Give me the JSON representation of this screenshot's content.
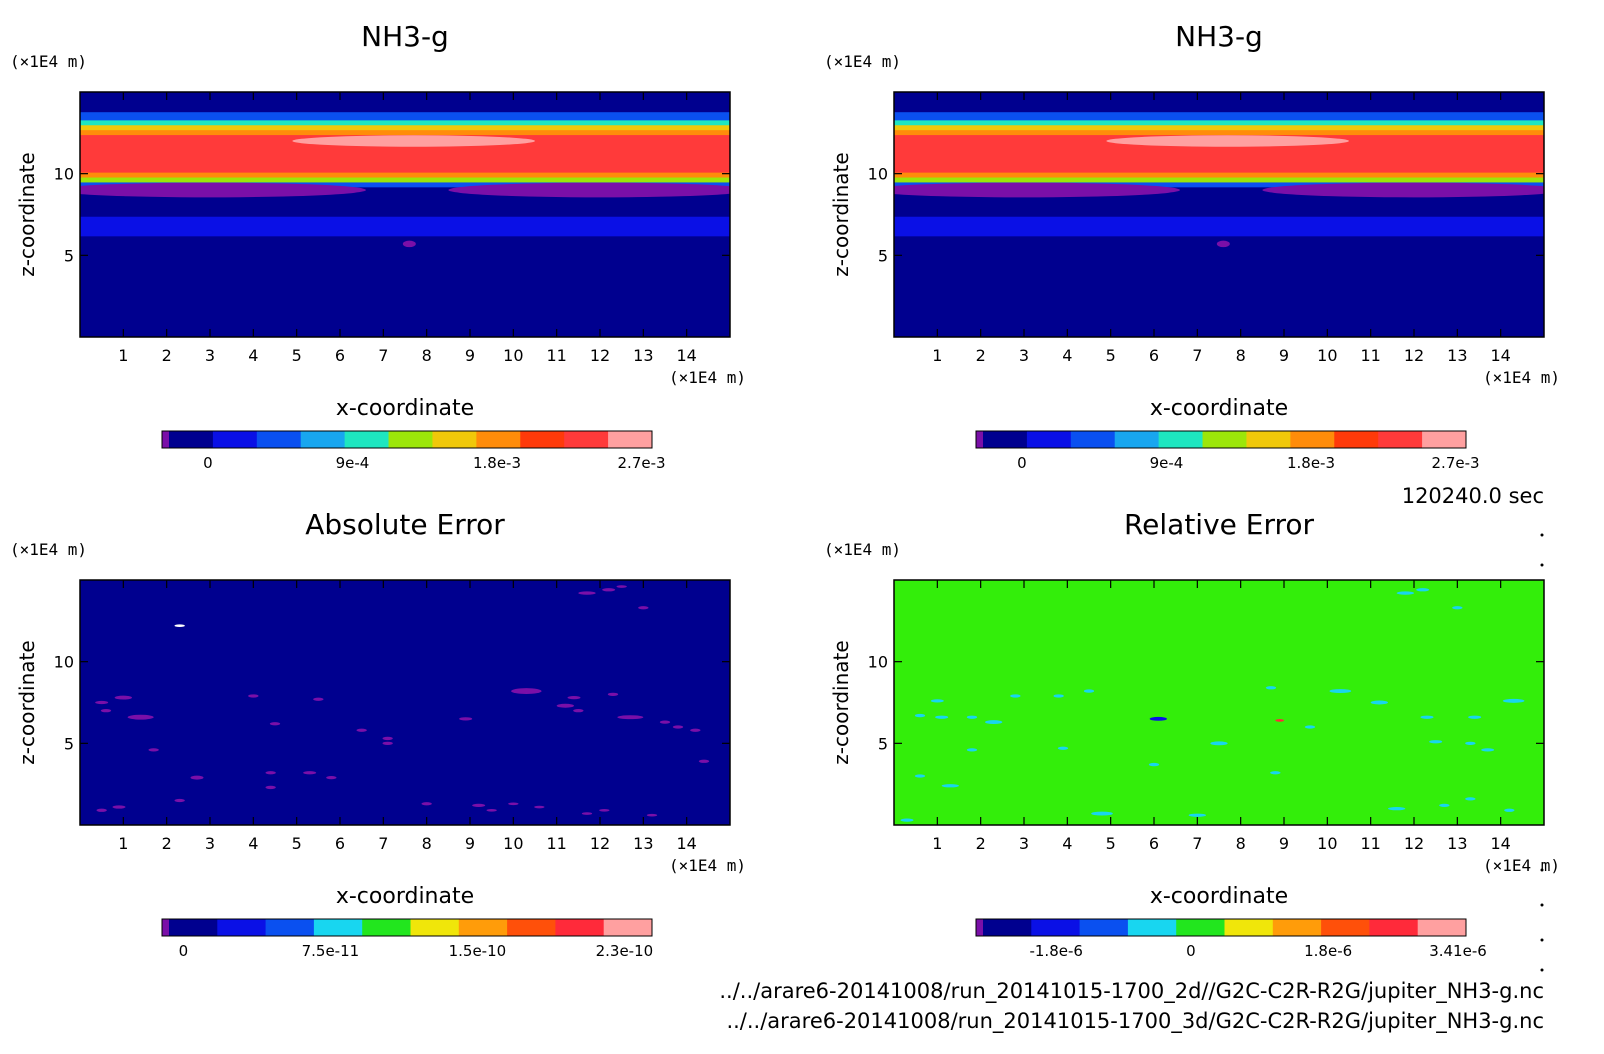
{
  "chart_data": [
    {
      "type": "heatmap",
      "title": "NH3-g",
      "xlabel": "x-coordinate",
      "ylabel": "z-coordinate",
      "x_unit": "(×1E4 m)",
      "y_unit": "(×1E4 m)",
      "xlim": [
        0,
        15
      ],
      "ylim": [
        0,
        15
      ],
      "x_ticks": [
        "1",
        "2",
        "3",
        "4",
        "5",
        "6",
        "7",
        "8",
        "9",
        "10",
        "11",
        "12",
        "13",
        "14"
      ],
      "y_ticks": [
        "5",
        "10"
      ],
      "colorbar": {
        "colors": [
          "#7a0fa8",
          "#00008f",
          "#0a10e6",
          "#0a50f0",
          "#18a6ef",
          "#1ee6c0",
          "#9ce60a",
          "#f0c80a",
          "#ff8c0a",
          "#ff3a0a",
          "#ff3a3a",
          "#ffa0a0"
        ],
        "labels": [
          "0",
          "9e-4",
          "1.8e-3",
          "2.7e-3"
        ]
      },
      "bands": [
        {
          "z0": 0.0,
          "z1": 6.2,
          "color": "#00008f"
        },
        {
          "z0": 6.2,
          "z1": 7.4,
          "color": "#0a10e6"
        },
        {
          "z0": 7.4,
          "z1": 8.3,
          "color": "#00008f"
        },
        {
          "z0": 8.3,
          "z1": 9.2,
          "color": "#00008f"
        },
        {
          "z0": 9.2,
          "z1": 9.5,
          "color": "#0a50f0"
        },
        {
          "z0": 9.5,
          "z1": 9.8,
          "color": "#9ce60a"
        },
        {
          "z0": 9.8,
          "z1": 10.1,
          "color": "#ff8c0a"
        },
        {
          "z0": 10.1,
          "z1": 12.4,
          "color": "#ff3a3a"
        },
        {
          "z0": 12.4,
          "z1": 12.7,
          "color": "#ff8c0a"
        },
        {
          "z0": 12.7,
          "z1": 13.0,
          "color": "#f0c80a"
        },
        {
          "z0": 13.0,
          "z1": 13.3,
          "color": "#1ee6c0"
        },
        {
          "z0": 13.3,
          "z1": 13.8,
          "color": "#0a50f0"
        },
        {
          "z0": 13.8,
          "z1": 15.0,
          "color": "#00008f"
        }
      ],
      "blobs": [
        {
          "x": 7.7,
          "z": 12.0,
          "rx": 2.8,
          "rz": 0.35,
          "color": "#ffa0a0"
        },
        {
          "x": 3.0,
          "z": 9.0,
          "rx": 3.6,
          "rz": 0.45,
          "color": "#7a0fa8"
        },
        {
          "x": 12.0,
          "z": 9.0,
          "rx": 3.5,
          "rz": 0.45,
          "color": "#7a0fa8"
        },
        {
          "x": 7.6,
          "z": 5.7,
          "rx": 0.15,
          "rz": 0.2,
          "color": "#7a0fa8"
        }
      ]
    },
    {
      "type": "heatmap",
      "title": "NH3-g",
      "xlabel": "x-coordinate",
      "ylabel": "z-coordinate",
      "x_unit": "(×1E4 m)",
      "y_unit": "(×1E4 m)",
      "xlim": [
        0,
        15
      ],
      "ylim": [
        0,
        15
      ],
      "x_ticks": [
        "1",
        "2",
        "3",
        "4",
        "5",
        "6",
        "7",
        "8",
        "9",
        "10",
        "11",
        "12",
        "13",
        "14"
      ],
      "y_ticks": [
        "5",
        "10"
      ],
      "colorbar": {
        "colors": [
          "#7a0fa8",
          "#00008f",
          "#0a10e6",
          "#0a50f0",
          "#18a6ef",
          "#1ee6c0",
          "#9ce60a",
          "#f0c80a",
          "#ff8c0a",
          "#ff3a0a",
          "#ff3a3a",
          "#ffa0a0"
        ],
        "labels": [
          "0",
          "9e-4",
          "1.8e-3",
          "2.7e-3"
        ]
      },
      "bands": [
        {
          "z0": 0.0,
          "z1": 6.2,
          "color": "#00008f"
        },
        {
          "z0": 6.2,
          "z1": 7.4,
          "color": "#0a10e6"
        },
        {
          "z0": 7.4,
          "z1": 8.3,
          "color": "#00008f"
        },
        {
          "z0": 8.3,
          "z1": 9.2,
          "color": "#00008f"
        },
        {
          "z0": 9.2,
          "z1": 9.5,
          "color": "#0a50f0"
        },
        {
          "z0": 9.5,
          "z1": 9.8,
          "color": "#9ce60a"
        },
        {
          "z0": 9.8,
          "z1": 10.1,
          "color": "#ff8c0a"
        },
        {
          "z0": 10.1,
          "z1": 12.4,
          "color": "#ff3a3a"
        },
        {
          "z0": 12.4,
          "z1": 12.7,
          "color": "#ff8c0a"
        },
        {
          "z0": 12.7,
          "z1": 13.0,
          "color": "#f0c80a"
        },
        {
          "z0": 13.0,
          "z1": 13.3,
          "color": "#1ee6c0"
        },
        {
          "z0": 13.3,
          "z1": 13.8,
          "color": "#0a50f0"
        },
        {
          "z0": 13.8,
          "z1": 15.0,
          "color": "#00008f"
        }
      ],
      "blobs": [
        {
          "x": 7.7,
          "z": 12.0,
          "rx": 2.8,
          "rz": 0.35,
          "color": "#ffa0a0"
        },
        {
          "x": 3.0,
          "z": 9.0,
          "rx": 3.6,
          "rz": 0.45,
          "color": "#7a0fa8"
        },
        {
          "x": 12.0,
          "z": 9.0,
          "rx": 3.5,
          "rz": 0.45,
          "color": "#7a0fa8"
        },
        {
          "x": 7.6,
          "z": 5.7,
          "rx": 0.15,
          "rz": 0.2,
          "color": "#7a0fa8"
        }
      ]
    },
    {
      "type": "heatmap",
      "title": "Absolute Error",
      "xlabel": "x-coordinate",
      "ylabel": "z-coordinate",
      "x_unit": "(×1E4 m)",
      "y_unit": "(×1E4 m)",
      "xlim": [
        0,
        15
      ],
      "ylim": [
        0,
        15
      ],
      "x_ticks": [
        "1",
        "2",
        "3",
        "4",
        "5",
        "6",
        "7",
        "8",
        "9",
        "10",
        "11",
        "12",
        "13",
        "14"
      ],
      "y_ticks": [
        "5",
        "10"
      ],
      "colorbar": {
        "colors": [
          "#7a0fa8",
          "#00008f",
          "#0a10e6",
          "#0a50f0",
          "#18d6f0",
          "#22e61e",
          "#f0e60a",
          "#ff9c0a",
          "#ff500a",
          "#ff2a3a",
          "#ffa0a0"
        ],
        "labels": [
          "0",
          "7.5e-11",
          "1.5e-10",
          "2.3e-10"
        ]
      },
      "background": "#00008f",
      "blobs": [
        {
          "x": 2.3,
          "z": 12.2,
          "rx": 0.12,
          "rz": 0.08,
          "color": "#ffffff"
        },
        {
          "x": 0.5,
          "z": 7.5,
          "rx": 0.15,
          "rz": 0.1,
          "color": "#7a0fa8"
        },
        {
          "x": 1.0,
          "z": 7.8,
          "rx": 0.2,
          "rz": 0.12,
          "color": "#7a0fa8"
        },
        {
          "x": 0.6,
          "z": 7.0,
          "rx": 0.12,
          "rz": 0.1,
          "color": "#7a0fa8"
        },
        {
          "x": 1.4,
          "z": 6.6,
          "rx": 0.3,
          "rz": 0.15,
          "color": "#7a0fa8"
        },
        {
          "x": 1.7,
          "z": 4.6,
          "rx": 0.12,
          "rz": 0.1,
          "color": "#7a0fa8"
        },
        {
          "x": 2.7,
          "z": 2.9,
          "rx": 0.15,
          "rz": 0.12,
          "color": "#7a0fa8"
        },
        {
          "x": 2.3,
          "z": 1.5,
          "rx": 0.12,
          "rz": 0.1,
          "color": "#7a0fa8"
        },
        {
          "x": 0.5,
          "z": 0.9,
          "rx": 0.12,
          "rz": 0.1,
          "color": "#7a0fa8"
        },
        {
          "x": 0.9,
          "z": 1.1,
          "rx": 0.15,
          "rz": 0.1,
          "color": "#7a0fa8"
        },
        {
          "x": 4.0,
          "z": 7.9,
          "rx": 0.12,
          "rz": 0.1,
          "color": "#7a0fa8"
        },
        {
          "x": 4.5,
          "z": 6.2,
          "rx": 0.12,
          "rz": 0.1,
          "color": "#7a0fa8"
        },
        {
          "x": 5.5,
          "z": 7.7,
          "rx": 0.12,
          "rz": 0.1,
          "color": "#7a0fa8"
        },
        {
          "x": 4.4,
          "z": 3.2,
          "rx": 0.12,
          "rz": 0.1,
          "color": "#7a0fa8"
        },
        {
          "x": 4.4,
          "z": 2.3,
          "rx": 0.12,
          "rz": 0.1,
          "color": "#7a0fa8"
        },
        {
          "x": 5.3,
          "z": 3.2,
          "rx": 0.15,
          "rz": 0.1,
          "color": "#7a0fa8"
        },
        {
          "x": 5.8,
          "z": 2.9,
          "rx": 0.12,
          "rz": 0.1,
          "color": "#7a0fa8"
        },
        {
          "x": 6.5,
          "z": 5.8,
          "rx": 0.12,
          "rz": 0.1,
          "color": "#7a0fa8"
        },
        {
          "x": 7.1,
          "z": 5.3,
          "rx": 0.12,
          "rz": 0.1,
          "color": "#7a0fa8"
        },
        {
          "x": 7.1,
          "z": 5.0,
          "rx": 0.12,
          "rz": 0.1,
          "color": "#7a0fa8"
        },
        {
          "x": 8.9,
          "z": 6.5,
          "rx": 0.15,
          "rz": 0.1,
          "color": "#7a0fa8"
        },
        {
          "x": 10.3,
          "z": 8.2,
          "rx": 0.35,
          "rz": 0.18,
          "color": "#7a0fa8"
        },
        {
          "x": 11.4,
          "z": 7.8,
          "rx": 0.15,
          "rz": 0.1,
          "color": "#7a0fa8"
        },
        {
          "x": 11.2,
          "z": 7.3,
          "rx": 0.2,
          "rz": 0.12,
          "color": "#7a0fa8"
        },
        {
          "x": 11.5,
          "z": 7.0,
          "rx": 0.12,
          "rz": 0.1,
          "color": "#7a0fa8"
        },
        {
          "x": 12.3,
          "z": 8.0,
          "rx": 0.12,
          "rz": 0.1,
          "color": "#7a0fa8"
        },
        {
          "x": 12.7,
          "z": 6.6,
          "rx": 0.3,
          "rz": 0.12,
          "color": "#7a0fa8"
        },
        {
          "x": 13.5,
          "z": 6.3,
          "rx": 0.12,
          "rz": 0.1,
          "color": "#7a0fa8"
        },
        {
          "x": 13.8,
          "z": 6.0,
          "rx": 0.12,
          "rz": 0.1,
          "color": "#7a0fa8"
        },
        {
          "x": 14.2,
          "z": 5.8,
          "rx": 0.12,
          "rz": 0.1,
          "color": "#7a0fa8"
        },
        {
          "x": 14.4,
          "z": 3.9,
          "rx": 0.12,
          "rz": 0.1,
          "color": "#7a0fa8"
        },
        {
          "x": 11.7,
          "z": 14.2,
          "rx": 0.2,
          "rz": 0.1,
          "color": "#7a0fa8"
        },
        {
          "x": 12.2,
          "z": 14.4,
          "rx": 0.15,
          "rz": 0.1,
          "color": "#7a0fa8"
        },
        {
          "x": 12.5,
          "z": 14.6,
          "rx": 0.12,
          "rz": 0.08,
          "color": "#7a0fa8"
        },
        {
          "x": 13.0,
          "z": 13.3,
          "rx": 0.12,
          "rz": 0.1,
          "color": "#7a0fa8"
        },
        {
          "x": 8.0,
          "z": 1.3,
          "rx": 0.12,
          "rz": 0.1,
          "color": "#7a0fa8"
        },
        {
          "x": 9.2,
          "z": 1.2,
          "rx": 0.15,
          "rz": 0.1,
          "color": "#7a0fa8"
        },
        {
          "x": 9.5,
          "z": 0.9,
          "rx": 0.12,
          "rz": 0.08,
          "color": "#7a0fa8"
        },
        {
          "x": 10.0,
          "z": 1.3,
          "rx": 0.12,
          "rz": 0.08,
          "color": "#7a0fa8"
        },
        {
          "x": 10.6,
          "z": 1.1,
          "rx": 0.12,
          "rz": 0.08,
          "color": "#7a0fa8"
        },
        {
          "x": 11.7,
          "z": 0.7,
          "rx": 0.12,
          "rz": 0.08,
          "color": "#7a0fa8"
        },
        {
          "x": 12.1,
          "z": 0.9,
          "rx": 0.12,
          "rz": 0.08,
          "color": "#7a0fa8"
        },
        {
          "x": 13.2,
          "z": 0.6,
          "rx": 0.12,
          "rz": 0.08,
          "color": "#7a0fa8"
        }
      ]
    },
    {
      "type": "heatmap",
      "title": "Relative Error",
      "xlabel": "x-coordinate",
      "ylabel": "z-coordinate",
      "x_unit": "(×1E4 m)",
      "y_unit": "(×1E4 m)",
      "xlim": [
        0,
        15
      ],
      "ylim": [
        0,
        15
      ],
      "x_ticks": [
        "1",
        "2",
        "3",
        "4",
        "5",
        "6",
        "7",
        "8",
        "9",
        "10",
        "11",
        "12",
        "13",
        "14"
      ],
      "y_ticks": [
        "5",
        "10"
      ],
      "colorbar": {
        "colors": [
          "#7a0fa8",
          "#00008f",
          "#0a10e6",
          "#0a50f0",
          "#18d6f0",
          "#22e61e",
          "#f0e60a",
          "#ff9c0a",
          "#ff500a",
          "#ff2a3a",
          "#ffa0a0"
        ],
        "labels": [
          "-1.8e-6",
          "0",
          "1.8e-6",
          "3.41e-6"
        ]
      },
      "background": "#33ee0a",
      "blobs": [
        {
          "x": 1.0,
          "z": 7.6,
          "rx": 0.15,
          "rz": 0.1,
          "color": "#18d6f0"
        },
        {
          "x": 0.6,
          "z": 6.7,
          "rx": 0.12,
          "rz": 0.1,
          "color": "#18d6f0"
        },
        {
          "x": 1.1,
          "z": 6.6,
          "rx": 0.15,
          "rz": 0.1,
          "color": "#18d6f0"
        },
        {
          "x": 1.8,
          "z": 6.6,
          "rx": 0.12,
          "rz": 0.1,
          "color": "#18d6f0"
        },
        {
          "x": 2.3,
          "z": 6.3,
          "rx": 0.2,
          "rz": 0.12,
          "color": "#18d6f0"
        },
        {
          "x": 1.8,
          "z": 4.6,
          "rx": 0.12,
          "rz": 0.1,
          "color": "#18d6f0"
        },
        {
          "x": 0.6,
          "z": 3.0,
          "rx": 0.12,
          "rz": 0.1,
          "color": "#18d6f0"
        },
        {
          "x": 1.3,
          "z": 2.4,
          "rx": 0.2,
          "rz": 0.1,
          "color": "#18d6f0"
        },
        {
          "x": 2.8,
          "z": 7.9,
          "rx": 0.12,
          "rz": 0.1,
          "color": "#18d6f0"
        },
        {
          "x": 3.8,
          "z": 7.9,
          "rx": 0.12,
          "rz": 0.1,
          "color": "#18d6f0"
        },
        {
          "x": 4.5,
          "z": 8.2,
          "rx": 0.12,
          "rz": 0.1,
          "color": "#18d6f0"
        },
        {
          "x": 3.9,
          "z": 4.7,
          "rx": 0.12,
          "rz": 0.1,
          "color": "#18d6f0"
        },
        {
          "x": 6.1,
          "z": 6.5,
          "rx": 0.2,
          "rz": 0.12,
          "color": "#0a10e6"
        },
        {
          "x": 6.0,
          "z": 3.7,
          "rx": 0.12,
          "rz": 0.1,
          "color": "#18d6f0"
        },
        {
          "x": 7.5,
          "z": 5.0,
          "rx": 0.2,
          "rz": 0.12,
          "color": "#18d6f0"
        },
        {
          "x": 8.7,
          "z": 8.4,
          "rx": 0.12,
          "rz": 0.1,
          "color": "#18d6f0"
        },
        {
          "x": 8.9,
          "z": 6.4,
          "rx": 0.1,
          "rz": 0.08,
          "color": "#ff2a3a"
        },
        {
          "x": 9.6,
          "z": 6.0,
          "rx": 0.12,
          "rz": 0.1,
          "color": "#18d6f0"
        },
        {
          "x": 8.8,
          "z": 3.2,
          "rx": 0.12,
          "rz": 0.1,
          "color": "#18d6f0"
        },
        {
          "x": 10.3,
          "z": 8.2,
          "rx": 0.25,
          "rz": 0.12,
          "color": "#18d6f0"
        },
        {
          "x": 11.2,
          "z": 7.5,
          "rx": 0.2,
          "rz": 0.12,
          "color": "#18d6f0"
        },
        {
          "x": 12.3,
          "z": 6.6,
          "rx": 0.15,
          "rz": 0.1,
          "color": "#18d6f0"
        },
        {
          "x": 13.4,
          "z": 6.6,
          "rx": 0.15,
          "rz": 0.1,
          "color": "#18d6f0"
        },
        {
          "x": 14.3,
          "z": 7.6,
          "rx": 0.25,
          "rz": 0.12,
          "color": "#18d6f0"
        },
        {
          "x": 12.5,
          "z": 5.1,
          "rx": 0.15,
          "rz": 0.1,
          "color": "#18d6f0"
        },
        {
          "x": 13.3,
          "z": 5.0,
          "rx": 0.12,
          "rz": 0.1,
          "color": "#18d6f0"
        },
        {
          "x": 13.7,
          "z": 4.6,
          "rx": 0.15,
          "rz": 0.1,
          "color": "#18d6f0"
        },
        {
          "x": 11.8,
          "z": 14.2,
          "rx": 0.2,
          "rz": 0.1,
          "color": "#18d6f0"
        },
        {
          "x": 12.2,
          "z": 14.4,
          "rx": 0.15,
          "rz": 0.1,
          "color": "#18d6f0"
        },
        {
          "x": 13.0,
          "z": 13.3,
          "rx": 0.12,
          "rz": 0.1,
          "color": "#18d6f0"
        },
        {
          "x": 4.8,
          "z": 0.7,
          "rx": 0.25,
          "rz": 0.12,
          "color": "#18d6f0"
        },
        {
          "x": 7.0,
          "z": 0.6,
          "rx": 0.2,
          "rz": 0.1,
          "color": "#18d6f0"
        },
        {
          "x": 11.6,
          "z": 1.0,
          "rx": 0.2,
          "rz": 0.1,
          "color": "#18d6f0"
        },
        {
          "x": 12.7,
          "z": 1.2,
          "rx": 0.12,
          "rz": 0.1,
          "color": "#18d6f0"
        },
        {
          "x": 13.3,
          "z": 1.6,
          "rx": 0.12,
          "rz": 0.1,
          "color": "#18d6f0"
        },
        {
          "x": 14.2,
          "z": 0.9,
          "rx": 0.12,
          "rz": 0.1,
          "color": "#18d6f0"
        },
        {
          "x": 0.3,
          "z": 0.3,
          "rx": 0.15,
          "rz": 0.1,
          "color": "#18d6f0"
        }
      ]
    }
  ],
  "annotations": {
    "time": "120240.0 sec",
    "file_paths": [
      "../../arare6-20141008/run_20141015-1700_2d//G2C-C2R-R2G/jupiter_NH3-g.nc",
      "../../arare6-20141008/run_20141015-1700_3d/G2C-C2R-R2G/jupiter_NH3-g.nc"
    ]
  }
}
